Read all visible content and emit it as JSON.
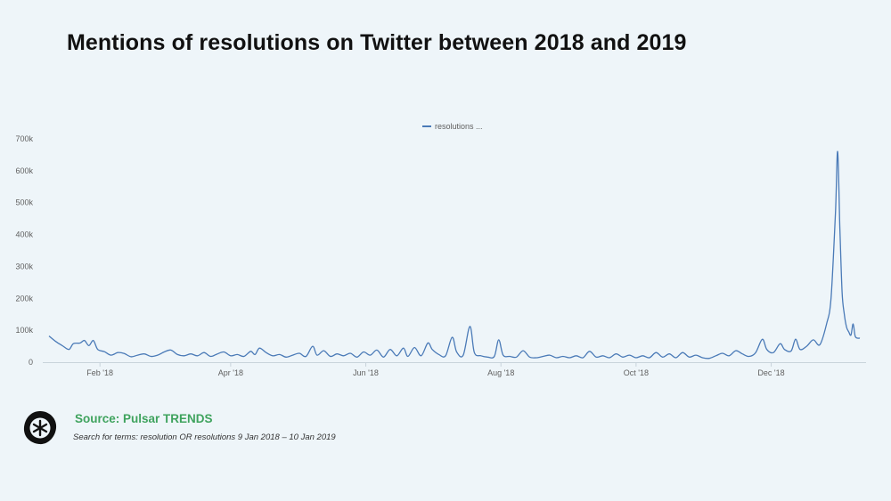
{
  "title": "Mentions of resolutions on Twitter between 2018 and 2019",
  "source": "Source: Pulsar TRENDS",
  "search_note": "Search for terms: resolution OR resolutions 9 Jan 2018 – 10 Jan 2019",
  "colors": {
    "line": "#4a7ab7",
    "source_text": "#3fa35e",
    "background": "#eef5f9"
  },
  "chart_data": {
    "type": "line",
    "title": "",
    "xlabel": "",
    "ylabel": "",
    "legend": {
      "position": "top-center",
      "entries": [
        "resolutions ..."
      ]
    },
    "grid": false,
    "x_range": [
      "2018-01-09",
      "2019-01-10"
    ],
    "ylim": [
      0,
      700000
    ],
    "y_ticks": [
      {
        "value": 0,
        "label": "0"
      },
      {
        "value": 100000,
        "label": "100k"
      },
      {
        "value": 200000,
        "label": "200k"
      },
      {
        "value": 300000,
        "label": "300k"
      },
      {
        "value": 400000,
        "label": "400k"
      },
      {
        "value": 500000,
        "label": "500k"
      },
      {
        "value": 600000,
        "label": "600k"
      },
      {
        "value": 700000,
        "label": "700k"
      }
    ],
    "x_ticks": [
      {
        "value": "2018-02-01",
        "label": "Feb '18"
      },
      {
        "value": "2018-04-01",
        "label": "Apr '18"
      },
      {
        "value": "2018-06-01",
        "label": "Jun '18"
      },
      {
        "value": "2018-08-01",
        "label": "Aug '18"
      },
      {
        "value": "2018-10-01",
        "label": "Oct '18"
      },
      {
        "value": "2018-12-01",
        "label": "Dec '18"
      }
    ],
    "series": [
      {
        "name": "resolutions ...",
        "points": [
          [
            "2018-01-09",
            82000
          ],
          [
            "2018-01-12",
            65000
          ],
          [
            "2018-01-15",
            52000
          ],
          [
            "2018-01-18",
            40000
          ],
          [
            "2018-01-20",
            58000
          ],
          [
            "2018-01-23",
            60000
          ],
          [
            "2018-01-25",
            68000
          ],
          [
            "2018-01-27",
            52000
          ],
          [
            "2018-01-29",
            68000
          ],
          [
            "2018-01-31",
            40000
          ],
          [
            "2018-02-03",
            33000
          ],
          [
            "2018-02-06",
            22000
          ],
          [
            "2018-02-09",
            30000
          ],
          [
            "2018-02-12",
            27000
          ],
          [
            "2018-02-15",
            17000
          ],
          [
            "2018-02-18",
            22000
          ],
          [
            "2018-02-21",
            26000
          ],
          [
            "2018-02-24",
            18000
          ],
          [
            "2018-02-27",
            22000
          ],
          [
            "2018-03-02",
            32000
          ],
          [
            "2018-03-05",
            38000
          ],
          [
            "2018-03-08",
            24000
          ],
          [
            "2018-03-11",
            20000
          ],
          [
            "2018-03-14",
            26000
          ],
          [
            "2018-03-17",
            20000
          ],
          [
            "2018-03-20",
            30000
          ],
          [
            "2018-03-23",
            18000
          ],
          [
            "2018-03-26",
            26000
          ],
          [
            "2018-03-29",
            32000
          ],
          [
            "2018-04-01",
            20000
          ],
          [
            "2018-04-04",
            24000
          ],
          [
            "2018-04-07",
            18000
          ],
          [
            "2018-04-10",
            34000
          ],
          [
            "2018-04-12",
            24000
          ],
          [
            "2018-04-14",
            44000
          ],
          [
            "2018-04-17",
            30000
          ],
          [
            "2018-04-20",
            20000
          ],
          [
            "2018-04-23",
            24000
          ],
          [
            "2018-04-26",
            16000
          ],
          [
            "2018-04-29",
            22000
          ],
          [
            "2018-05-02",
            28000
          ],
          [
            "2018-05-05",
            18000
          ],
          [
            "2018-05-08",
            50000
          ],
          [
            "2018-05-10",
            22000
          ],
          [
            "2018-05-13",
            36000
          ],
          [
            "2018-05-16",
            18000
          ],
          [
            "2018-05-19",
            26000
          ],
          [
            "2018-05-22",
            20000
          ],
          [
            "2018-05-25",
            28000
          ],
          [
            "2018-05-28",
            16000
          ],
          [
            "2018-05-31",
            32000
          ],
          [
            "2018-06-03",
            22000
          ],
          [
            "2018-06-06",
            38000
          ],
          [
            "2018-06-09",
            16000
          ],
          [
            "2018-06-12",
            40000
          ],
          [
            "2018-06-15",
            20000
          ],
          [
            "2018-06-18",
            44000
          ],
          [
            "2018-06-20",
            18000
          ],
          [
            "2018-06-23",
            46000
          ],
          [
            "2018-06-26",
            20000
          ],
          [
            "2018-06-29",
            60000
          ],
          [
            "2018-07-01",
            40000
          ],
          [
            "2018-07-04",
            24000
          ],
          [
            "2018-07-07",
            20000
          ],
          [
            "2018-07-10",
            78000
          ],
          [
            "2018-07-12",
            32000
          ],
          [
            "2018-07-15",
            22000
          ],
          [
            "2018-07-18",
            112000
          ],
          [
            "2018-07-20",
            30000
          ],
          [
            "2018-07-23",
            20000
          ],
          [
            "2018-07-26",
            16000
          ],
          [
            "2018-07-29",
            18000
          ],
          [
            "2018-07-31",
            70000
          ],
          [
            "2018-08-02",
            22000
          ],
          [
            "2018-08-05",
            18000
          ],
          [
            "2018-08-08",
            16000
          ],
          [
            "2018-08-11",
            36000
          ],
          [
            "2018-08-14",
            16000
          ],
          [
            "2018-08-17",
            14000
          ],
          [
            "2018-08-20",
            18000
          ],
          [
            "2018-08-23",
            22000
          ],
          [
            "2018-08-26",
            14000
          ],
          [
            "2018-08-29",
            18000
          ],
          [
            "2018-09-01",
            14000
          ],
          [
            "2018-09-04",
            20000
          ],
          [
            "2018-09-07",
            14000
          ],
          [
            "2018-09-10",
            34000
          ],
          [
            "2018-09-13",
            16000
          ],
          [
            "2018-09-16",
            20000
          ],
          [
            "2018-09-19",
            14000
          ],
          [
            "2018-09-22",
            26000
          ],
          [
            "2018-09-25",
            16000
          ],
          [
            "2018-09-28",
            22000
          ],
          [
            "2018-10-01",
            14000
          ],
          [
            "2018-10-04",
            20000
          ],
          [
            "2018-10-07",
            14000
          ],
          [
            "2018-10-10",
            30000
          ],
          [
            "2018-10-13",
            16000
          ],
          [
            "2018-10-16",
            26000
          ],
          [
            "2018-10-19",
            14000
          ],
          [
            "2018-10-22",
            30000
          ],
          [
            "2018-10-25",
            16000
          ],
          [
            "2018-10-28",
            22000
          ],
          [
            "2018-10-31",
            14000
          ],
          [
            "2018-11-03",
            12000
          ],
          [
            "2018-11-06",
            20000
          ],
          [
            "2018-11-09",
            28000
          ],
          [
            "2018-11-12",
            20000
          ],
          [
            "2018-11-15",
            36000
          ],
          [
            "2018-11-18",
            26000
          ],
          [
            "2018-11-21",
            18000
          ],
          [
            "2018-11-24",
            30000
          ],
          [
            "2018-11-27",
            72000
          ],
          [
            "2018-11-29",
            40000
          ],
          [
            "2018-12-02",
            30000
          ],
          [
            "2018-12-05",
            58000
          ],
          [
            "2018-12-07",
            40000
          ],
          [
            "2018-12-10",
            35000
          ],
          [
            "2018-12-12",
            72000
          ],
          [
            "2018-12-14",
            40000
          ],
          [
            "2018-12-17",
            50000
          ],
          [
            "2018-12-20",
            70000
          ],
          [
            "2018-12-23",
            55000
          ],
          [
            "2018-12-26",
            120000
          ],
          [
            "2018-12-28",
            200000
          ],
          [
            "2018-12-30",
            470000
          ],
          [
            "2018-12-31",
            660000
          ],
          [
            "2019-01-01",
            420000
          ],
          [
            "2019-01-02",
            220000
          ],
          [
            "2019-01-03",
            150000
          ],
          [
            "2019-01-04",
            110000
          ],
          [
            "2019-01-05",
            95000
          ],
          [
            "2019-01-06",
            85000
          ],
          [
            "2019-01-07",
            120000
          ],
          [
            "2019-01-08",
            80000
          ],
          [
            "2019-01-10",
            75000
          ]
        ]
      }
    ]
  }
}
